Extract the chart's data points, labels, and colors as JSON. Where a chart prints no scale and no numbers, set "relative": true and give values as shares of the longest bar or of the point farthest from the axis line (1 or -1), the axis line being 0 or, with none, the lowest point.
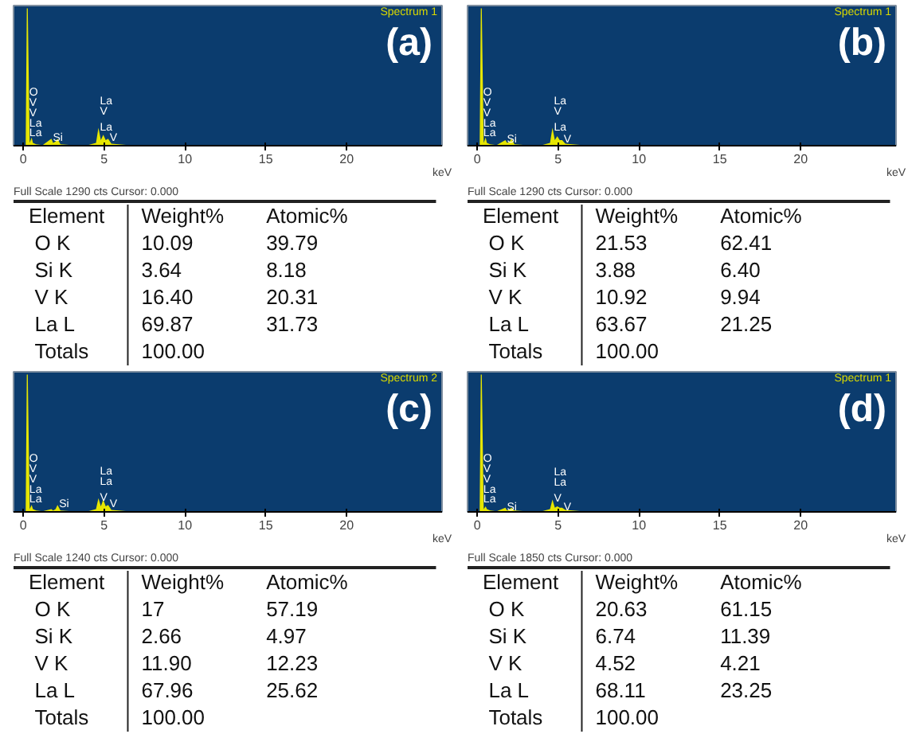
{
  "chart_data": [
    {
      "type": "area",
      "title": "(a)",
      "subtitle": "Spectrum 1",
      "xlabel": "keV",
      "relative": true,
      "xlim": [
        -0.6,
        25.9
      ],
      "xticks": [
        0,
        5,
        10,
        15,
        20
      ],
      "annotations": [
        "Full Scale 1290 cts Cursor: 0.000",
        {
          "text": "La",
          "x": 0.28,
          "y": 0.086
        },
        {
          "text": "La",
          "x": 0.28,
          "y": 0.155
        },
        {
          "text": "V",
          "x": 0.28,
          "y": 0.23
        },
        {
          "text": "V",
          "x": 0.28,
          "y": 0.31
        },
        {
          "text": "O",
          "x": 0.28,
          "y": 0.38
        },
        {
          "text": "Si",
          "x": 1.74,
          "y": 0.05
        },
        {
          "text": "La",
          "x": 4.65,
          "y": 0.13
        },
        {
          "text": "V",
          "x": 4.65,
          "y": 0.13
        },
        {
          "text": "La",
          "x": 4.65,
          "y": 0.13
        },
        {
          "text": "V",
          "x": 5.25,
          "y": 0.05
        }
      ],
      "x": [
        0,
        0.15,
        0.22,
        0.28,
        0.4,
        0.52,
        0.6,
        0.8,
        1.2,
        1.74,
        1.85,
        2.0,
        2.12,
        2.3,
        3.0,
        4.0,
        4.5,
        4.65,
        4.8,
        4.95,
        5.1,
        5.25,
        5.45,
        5.9,
        6.5,
        8.0,
        12.0,
        20.0,
        25.0
      ],
      "series": [
        {
          "color": "#e6e600",
          "values": [
            0,
            0,
            1,
            1,
            0.02,
            0.06,
            0.02,
            0.01,
            0.005,
            0.05,
            0.02,
            0.03,
            0.05,
            0.01,
            0.005,
            0.005,
            0.02,
            0.13,
            0.04,
            0.08,
            0.04,
            0.05,
            0.015,
            0.01,
            0.005,
            0.003,
            0.002,
            0,
            0
          ]
        }
      ]
    },
    {
      "type": "other",
      "xlabel": "Element",
      "categories": [
        "O K",
        "Si K",
        "V K",
        "La L",
        "Totals"
      ],
      "series": [
        {
          "name": "Weight%",
          "values": [
            10.09,
            3.64,
            16.4,
            69.87,
            100
          ],
          "value_labels": [
            "10.09",
            "3.64",
            "16.40",
            "69.87",
            "100.00"
          ]
        },
        {
          "name": "Atomic%",
          "values": [
            39.79,
            8.18,
            20.31,
            31.73,
            null
          ],
          "value_labels": [
            "39.79",
            "8.18",
            "20.31",
            "31.73",
            null
          ]
        }
      ]
    },
    {
      "type": "area",
      "title": "(b)",
      "subtitle": "Spectrum 1",
      "xlabel": "keV",
      "relative": true,
      "xlim": [
        -0.6,
        25.9
      ],
      "xticks": [
        0,
        5,
        10,
        15,
        20
      ],
      "annotations": [
        "Full Scale 1290 cts Cursor: 0.000",
        {
          "text": "La",
          "x": 0.28,
          "y": 0.086
        },
        {
          "text": "La",
          "x": 0.28,
          "y": 0.155
        },
        {
          "text": "V",
          "x": 0.28,
          "y": 0.23
        },
        {
          "text": "V",
          "x": 0.28,
          "y": 0.31
        },
        {
          "text": "O",
          "x": 0.28,
          "y": 0.38
        },
        {
          "text": "Si",
          "x": 1.74,
          "y": 0.04
        },
        {
          "text": "La",
          "x": 4.65,
          "y": 0.13
        },
        {
          "text": "V",
          "x": 4.65,
          "y": 0.13
        },
        {
          "text": "La",
          "x": 4.65,
          "y": 0.13
        },
        {
          "text": "V",
          "x": 5.25,
          "y": 0.04
        }
      ],
      "x": [
        0,
        0.15,
        0.22,
        0.28,
        0.4,
        0.52,
        0.6,
        0.8,
        1.2,
        1.74,
        1.85,
        2.0,
        2.12,
        2.3,
        3.0,
        4.0,
        4.5,
        4.65,
        4.8,
        4.95,
        5.1,
        5.25,
        5.45,
        5.9,
        6.5,
        8.0,
        12.0,
        20.0,
        25.0
      ],
      "series": [
        {
          "color": "#e6e600",
          "values": [
            0,
            0,
            1,
            1,
            0.02,
            0.06,
            0.02,
            0.01,
            0.005,
            0.04,
            0.02,
            0.03,
            0.05,
            0.01,
            0.005,
            0.005,
            0.02,
            0.13,
            0.04,
            0.07,
            0.04,
            0.04,
            0.015,
            0.01,
            0.005,
            0.003,
            0.002,
            0,
            0
          ]
        }
      ]
    },
    {
      "type": "other",
      "xlabel": "Element",
      "categories": [
        "O K",
        "Si K",
        "V K",
        "La L",
        "Totals"
      ],
      "series": [
        {
          "name": "Weight%",
          "values": [
            21.53,
            3.88,
            10.92,
            63.67,
            100
          ],
          "value_labels": [
            "21.53",
            "3.88",
            "10.92",
            "63.67",
            "100.00"
          ]
        },
        {
          "name": "Atomic%",
          "values": [
            62.41,
            6.4,
            9.94,
            21.25,
            null
          ],
          "value_labels": [
            "62.41",
            "6.40",
            "9.94",
            "21.25",
            null
          ]
        }
      ]
    },
    {
      "type": "area",
      "title": "(c)",
      "subtitle": "Spectrum 2",
      "xlabel": "keV",
      "relative": true,
      "xlim": [
        -0.6,
        25.9
      ],
      "xticks": [
        0,
        5,
        10,
        15,
        20
      ],
      "annotations": [
        "Full Scale 1240 cts Cursor: 0.000",
        {
          "text": "La",
          "x": 0.28,
          "y": 0.086
        },
        {
          "text": "La",
          "x": 0.28,
          "y": 0.155
        },
        {
          "text": "V",
          "x": 0.28,
          "y": 0.23
        },
        {
          "text": "V",
          "x": 0.28,
          "y": 0.31
        },
        {
          "text": "O",
          "x": 0.28,
          "y": 0.38
        },
        {
          "text": "Si",
          "x": 2.12,
          "y": 0.05
        },
        {
          "text": "V",
          "x": 4.65,
          "y": 0.1
        },
        {
          "text": "La",
          "x": 4.65,
          "y": 0.1
        },
        {
          "text": "La",
          "x": 4.65,
          "y": 0.1
        },
        {
          "text": "V",
          "x": 5.25,
          "y": 0.05
        }
      ],
      "x": [
        0,
        0.15,
        0.22,
        0.28,
        0.4,
        0.52,
        0.6,
        0.8,
        1.2,
        1.74,
        1.85,
        2.0,
        2.12,
        2.3,
        3.0,
        4.0,
        4.5,
        4.65,
        4.8,
        4.95,
        5.1,
        5.25,
        5.45,
        5.9,
        6.5,
        8.0,
        12.0,
        20.0,
        25.0
      ],
      "series": [
        {
          "color": "#e6e600",
          "values": [
            0,
            0,
            1,
            1,
            0.02,
            0.05,
            0.02,
            0.01,
            0.005,
            0.02,
            0.01,
            0.02,
            0.05,
            0.01,
            0.005,
            0.005,
            0.02,
            0.1,
            0.04,
            0.09,
            0.04,
            0.05,
            0.015,
            0.01,
            0.005,
            0.003,
            0.002,
            0,
            0
          ]
        }
      ]
    },
    {
      "type": "other",
      "xlabel": "Element",
      "categories": [
        "O K",
        "Si K",
        "V K",
        "La L",
        "Totals"
      ],
      "series": [
        {
          "name": "Weight%",
          "values": [
            17,
            2.66,
            11.9,
            67.96,
            100
          ],
          "value_labels": [
            "17",
            "2.66",
            "11.90",
            "67.96",
            "100.00"
          ]
        },
        {
          "name": "Atomic%",
          "values": [
            57.19,
            4.97,
            12.23,
            25.62,
            null
          ],
          "value_labels": [
            "57.19",
            "4.97",
            "12.23",
            "25.62",
            null
          ]
        }
      ]
    },
    {
      "type": "area",
      "title": "(d)",
      "subtitle": "Spectrum 1",
      "xlabel": "keV",
      "relative": true,
      "xlim": [
        -0.6,
        25.9
      ],
      "xticks": [
        0,
        5,
        10,
        15,
        20
      ],
      "annotations": [
        "Full Scale 1850 cts Cursor: 0.000",
        {
          "text": "La",
          "x": 0.28,
          "y": 0.086
        },
        {
          "text": "La",
          "x": 0.28,
          "y": 0.155
        },
        {
          "text": "V",
          "x": 0.28,
          "y": 0.23
        },
        {
          "text": "V",
          "x": 0.28,
          "y": 0.31
        },
        {
          "text": "O",
          "x": 0.28,
          "y": 0.38
        },
        {
          "text": "Si",
          "x": 1.74,
          "y": 0.03
        },
        {
          "text": "V",
          "x": 4.65,
          "y": 0.09
        },
        {
          "text": "La",
          "x": 4.65,
          "y": 0.09
        },
        {
          "text": "La",
          "x": 4.65,
          "y": 0.09
        },
        {
          "text": "V",
          "x": 5.25,
          "y": 0.03
        }
      ],
      "x": [
        0,
        0.15,
        0.22,
        0.28,
        0.4,
        0.52,
        0.6,
        0.8,
        1.2,
        1.74,
        1.85,
        2.0,
        2.12,
        2.3,
        3.0,
        4.0,
        4.5,
        4.65,
        4.8,
        4.95,
        5.1,
        5.25,
        5.45,
        5.9,
        6.5,
        8.0,
        12.0,
        20.0,
        25.0
      ],
      "series": [
        {
          "color": "#e6e600",
          "values": [
            0,
            0,
            1,
            1,
            0.02,
            0.04,
            0.02,
            0.01,
            0.005,
            0.03,
            0.01,
            0.02,
            0.03,
            0.01,
            0.005,
            0.005,
            0.02,
            0.09,
            0.03,
            0.04,
            0.03,
            0.03,
            0.015,
            0.01,
            0.005,
            0.003,
            0.002,
            0,
            0
          ]
        }
      ]
    },
    {
      "type": "other",
      "xlabel": "Element",
      "categories": [
        "O K",
        "Si K",
        "V K",
        "La L",
        "Totals"
      ],
      "series": [
        {
          "name": "Weight%",
          "values": [
            20.63,
            6.74,
            4.52,
            68.11,
            100
          ],
          "value_labels": [
            "20.63",
            "6.74",
            "4.52",
            "68.11",
            "100.00"
          ]
        },
        {
          "name": "Atomic%",
          "values": [
            61.15,
            11.39,
            4.21,
            23.25,
            null
          ],
          "value_labels": [
            "61.15",
            "11.39",
            "4.21",
            "23.25",
            null
          ]
        }
      ]
    }
  ]
}
